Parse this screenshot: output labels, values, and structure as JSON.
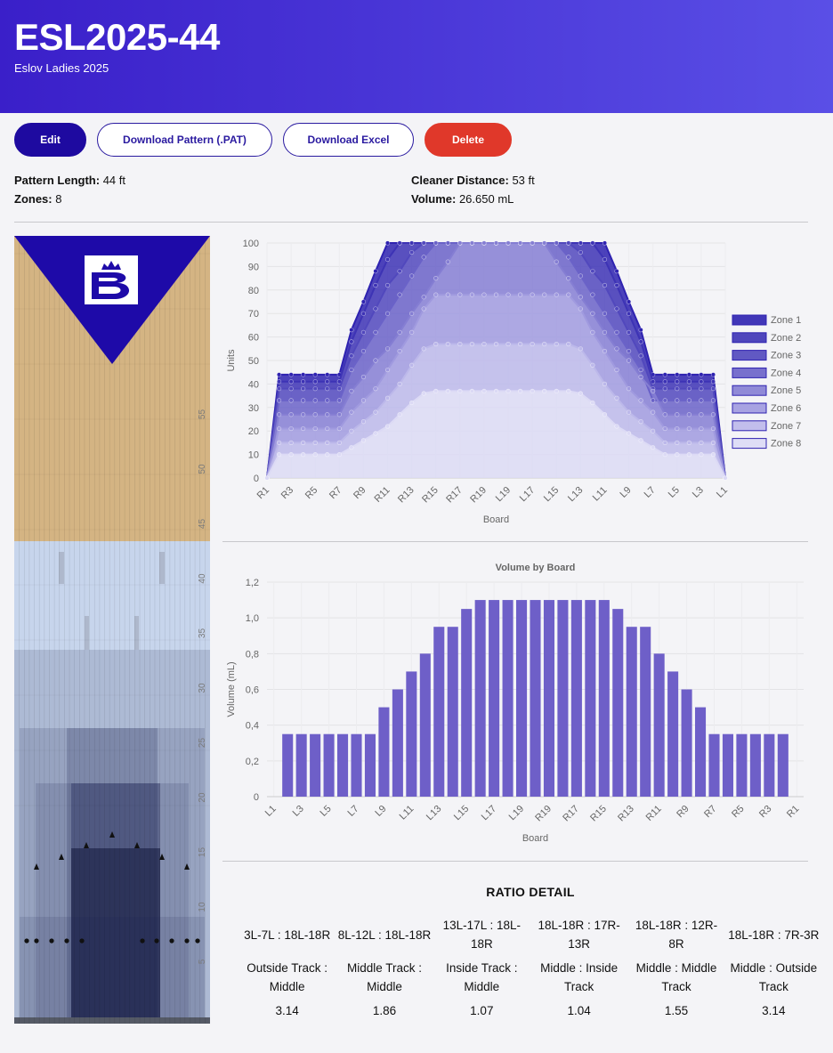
{
  "header": {
    "title": "ESL2025-44",
    "subtitle": "Eslov Ladies 2025"
  },
  "buttons": [
    "Edit",
    "Download Pattern (.PAT)",
    "Download Excel",
    "Delete"
  ],
  "info": [
    {
      "label": "Pattern Length:",
      "value": "44 ft"
    },
    {
      "label": "Cleaner Distance:",
      "value": "53 ft"
    },
    {
      "label": "Zones:",
      "value": "8"
    },
    {
      "label": "Volume:",
      "value": "26.650 mL"
    }
  ],
  "lane": {
    "distance_marks": [
      5,
      10,
      15,
      20,
      25,
      30,
      35,
      40,
      45,
      50,
      55
    ]
  },
  "chart_data": [
    {
      "type": "area",
      "y_label": "Units",
      "x_label": "Board",
      "legend": "right",
      "grid": true,
      "categories": [
        "R1",
        null,
        "R3",
        null,
        "R5",
        null,
        "R7",
        null,
        "R9",
        null,
        "R11",
        null,
        "R13",
        null,
        "R15",
        null,
        "R17",
        null,
        "R19",
        null,
        "L19",
        null,
        "L17",
        null,
        "L15",
        null,
        "L13",
        null,
        "L11",
        null,
        "L9",
        null,
        "L7",
        null,
        "L5",
        null,
        "L3",
        null,
        "L1"
      ],
      "ylim": [
        0,
        100
      ],
      "yticks": [
        0,
        10,
        20,
        30,
        40,
        50,
        60,
        70,
        80,
        90,
        100
      ],
      "series": [
        {
          "name": "Zone 1",
          "color": "#2e22b0",
          "values": [
            0,
            44,
            44,
            44,
            44,
            44,
            44,
            63,
            75,
            88,
            100,
            100,
            100,
            100,
            100,
            100,
            100,
            100,
            100,
            100,
            100,
            100,
            100,
            100,
            100,
            100,
            100,
            100,
            100,
            88,
            75,
            63,
            44,
            44,
            44,
            44,
            44,
            44,
            0
          ]
        },
        {
          "name": "Zone 2",
          "color": "#3d33b5",
          "values": [
            0,
            41,
            41,
            41,
            41,
            41,
            41,
            58,
            70,
            82,
            93,
            100,
            100,
            100,
            100,
            100,
            100,
            100,
            100,
            100,
            100,
            100,
            100,
            100,
            100,
            100,
            100,
            100,
            93,
            82,
            70,
            58,
            41,
            41,
            41,
            41,
            41,
            41,
            0
          ]
        },
        {
          "name": "Zone 3",
          "color": "#5148bd",
          "values": [
            0,
            38,
            38,
            38,
            38,
            38,
            38,
            52,
            62,
            72,
            82,
            88,
            96,
            100,
            100,
            100,
            100,
            100,
            100,
            100,
            100,
            100,
            100,
            100,
            100,
            100,
            96,
            88,
            82,
            72,
            62,
            52,
            38,
            38,
            38,
            38,
            38,
            38,
            0
          ]
        },
        {
          "name": "Zone 4",
          "color": "#6a62c8",
          "values": [
            0,
            33,
            33,
            33,
            33,
            33,
            33,
            46,
            54,
            62,
            70,
            78,
            86,
            94,
            100,
            100,
            100,
            100,
            100,
            100,
            100,
            100,
            100,
            100,
            100,
            94,
            86,
            78,
            70,
            62,
            54,
            46,
            33,
            33,
            33,
            33,
            33,
            33,
            0
          ]
        },
        {
          "name": "Zone 5",
          "color": "#857ed3",
          "values": [
            0,
            27,
            27,
            27,
            27,
            27,
            27,
            37,
            43,
            50,
            55,
            62,
            70,
            77,
            85,
            92,
            100,
            100,
            100,
            100,
            100,
            100,
            100,
            100,
            92,
            85,
            77,
            70,
            62,
            55,
            50,
            43,
            37,
            27,
            27,
            27,
            27,
            27,
            0
          ]
        },
        {
          "name": "Zone 6",
          "color": "#a09adf",
          "values": [
            0,
            21,
            21,
            21,
            21,
            21,
            21,
            28,
            33,
            38,
            46,
            54,
            62,
            72,
            78,
            78,
            78,
            78,
            78,
            78,
            78,
            78,
            78,
            78,
            78,
            78,
            72,
            62,
            54,
            46,
            38,
            33,
            28,
            21,
            21,
            21,
            21,
            21,
            0
          ]
        },
        {
          "name": "Zone 7",
          "color": "#bcb8ea",
          "values": [
            0,
            15,
            15,
            15,
            15,
            15,
            15,
            20,
            24,
            28,
            34,
            40,
            48,
            55,
            57,
            57,
            57,
            57,
            57,
            57,
            57,
            57,
            57,
            57,
            57,
            57,
            55,
            48,
            40,
            34,
            28,
            24,
            20,
            15,
            15,
            15,
            15,
            15,
            0
          ]
        },
        {
          "name": "Zone 8",
          "color": "#dcdaf5",
          "values": [
            0,
            10,
            10,
            10,
            10,
            10,
            10,
            13,
            16,
            19,
            22,
            27,
            32,
            36,
            37,
            37,
            37,
            37,
            37,
            37,
            37,
            37,
            37,
            37,
            37,
            37,
            36,
            32,
            27,
            22,
            19,
            16,
            13,
            10,
            10,
            10,
            10,
            10,
            0
          ]
        }
      ]
    },
    {
      "type": "bar",
      "title": "Volume by Board",
      "y_label": "Volume (mL)",
      "x_label": "Board",
      "grid": true,
      "color": "#6e5fc8",
      "categories": [
        "L1",
        null,
        "L3",
        null,
        "L5",
        null,
        "L7",
        null,
        "L9",
        null,
        "L11",
        null,
        "L13",
        null,
        "L15",
        null,
        "L17",
        null,
        "L19",
        null,
        "R19",
        null,
        "R17",
        null,
        "R15",
        null,
        "R13",
        null,
        "R11",
        null,
        "R9",
        null,
        "R7",
        null,
        "R5",
        null,
        "R3",
        null,
        "R1"
      ],
      "values": [
        0,
        0.35,
        0.35,
        0.35,
        0.35,
        0.35,
        0.35,
        0.35,
        0.5,
        0.6,
        0.7,
        0.8,
        0.95,
        0.95,
        1.05,
        1.1,
        1.1,
        1.1,
        1.1,
        1.1,
        1.1,
        1.1,
        1.1,
        1.1,
        1.1,
        1.05,
        0.95,
        0.95,
        0.8,
        0.7,
        0.6,
        0.5,
        0.35,
        0.35,
        0.35,
        0.35,
        0.35,
        0.35,
        0
      ],
      "ylim": [
        0,
        1.2
      ],
      "yticks": [
        0,
        {
          "value": 0.2,
          "label": "0,2"
        },
        {
          "value": 0.4,
          "label": "0,4"
        },
        {
          "value": 0.6,
          "label": "0,6"
        },
        {
          "value": 0.8,
          "label": "0,8"
        },
        {
          "value": 1,
          "label": "1,0"
        },
        {
          "value": 1.2,
          "label": "1,2"
        }
      ]
    }
  ],
  "ratio_detail": {
    "title": "RATIO DETAIL",
    "columns": [
      {
        "range": "3L-7L : 18L-18R",
        "tracks": "Outside Track : Middle",
        "value": 3.14
      },
      {
        "range": "8L-12L : 18L-18R",
        "tracks": "Middle Track : Middle",
        "value": 1.86
      },
      {
        "range": "13L-17L : 18L-18R",
        "tracks": "Inside Track : Middle",
        "value": 1.07
      },
      {
        "range": "18L-18R : 17R-13R",
        "tracks": "Middle : Inside Track",
        "value": 1.04
      },
      {
        "range": "18L-18R : 12R-8R",
        "tracks": "Middle : Middle Track",
        "value": 1.55
      },
      {
        "range": "18L-18R : 7R-3R",
        "tracks": "Middle : Outside Track",
        "value": 3.14
      }
    ]
  }
}
